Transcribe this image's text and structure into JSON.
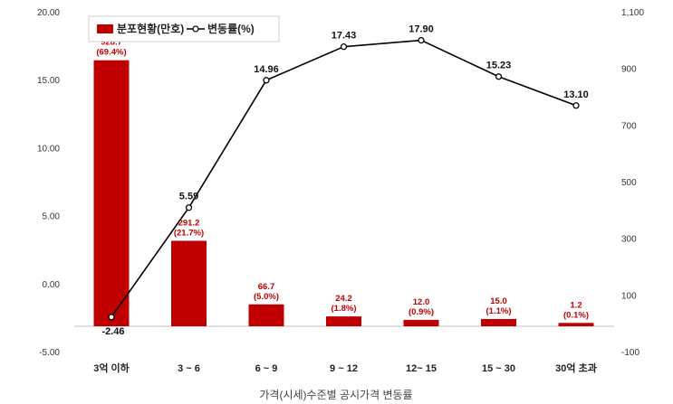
{
  "chart_data": {
    "type": "bar+line",
    "caption": "가격(시세)수준별 공시가격 변동률",
    "categories": [
      "3억 이하",
      "3 ~ 6",
      "6 ~ 9",
      "9 ~ 12",
      "12~ 15",
      "15 ~ 30",
      "30억 초과"
    ],
    "series": [
      {
        "name": "분포현황(만호)",
        "type": "bar",
        "axis": "right",
        "values": [
          928.7,
          291.2,
          66.7,
          24.2,
          12.0,
          15.0,
          1.2
        ],
        "value_labels": [
          "928.7",
          "291.2",
          "66.7",
          "24.2",
          "12.0",
          "15.0",
          "1.2"
        ],
        "share_labels": [
          "(69.4%)",
          "(21.7%)",
          "(5.0%)",
          "(1.8%)",
          "(0.9%)",
          "(1.1%)",
          "(0.1%)"
        ],
        "color": "#c00000"
      },
      {
        "name": "변동률(%)",
        "type": "line",
        "axis": "left",
        "values": [
          -2.46,
          5.59,
          14.96,
          17.43,
          17.9,
          15.23,
          13.1
        ],
        "value_labels": [
          "-2.46",
          "5.59",
          "14.96",
          "17.43",
          "17.90",
          "15.23",
          "13.10"
        ],
        "color": "#000000"
      }
    ],
    "left_axis": {
      "min": -5,
      "max": 20,
      "ticks": [
        "-5.00",
        "0.00",
        "5.00",
        "10.00",
        "15.00",
        "20.00"
      ]
    },
    "right_axis": {
      "min": -100,
      "max": 1100,
      "ticks": [
        "-100",
        "100",
        "300",
        "500",
        "700",
        "900",
        "1,100"
      ]
    },
    "grid": false,
    "legend_position": "top-left"
  }
}
